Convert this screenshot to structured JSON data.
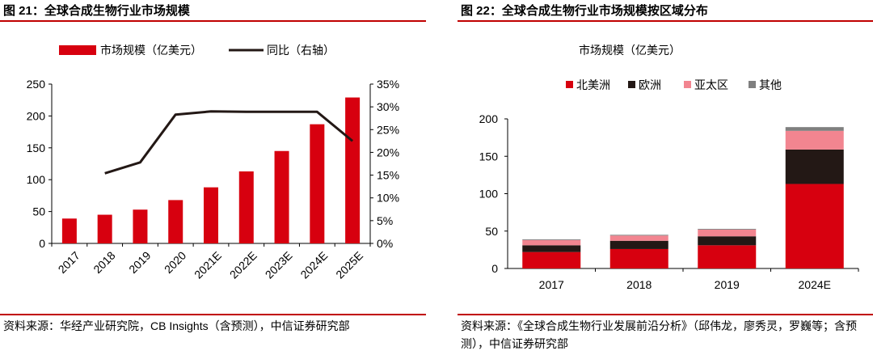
{
  "left_panel": {
    "title": "图 21：全球合成生物行业市场规模",
    "source": "资料来源：华经产业研究院，CB Insights（含预测），中信证券研究部"
  },
  "right_panel": {
    "title": "图 22：全球合成生物行业市场规模按区域分布",
    "source": "资料来源：《全球合成生物行业发展前沿分析》（邱伟龙，廖秀灵，罗巍等；含预测），中信证券研究部"
  },
  "chart_data": [
    {
      "type": "bar",
      "categories": [
        "2017",
        "2018",
        "2019",
        "2020",
        "2021E",
        "2022E",
        "2023E",
        "2024E",
        "2025E"
      ],
      "series": [
        {
          "name": "市场规模（亿美元）",
          "type": "bar",
          "axis": "left",
          "color": "#d7000f",
          "values": [
            39,
            45,
            53,
            68,
            88,
            113,
            145,
            187,
            229
          ]
        },
        {
          "name": "同比（右轴）",
          "type": "line",
          "axis": "right",
          "color": "#231815",
          "values": [
            null,
            15.4,
            17.8,
            28.3,
            29.0,
            28.9,
            28.9,
            28.9,
            22.5
          ]
        }
      ],
      "ylim": [
        0,
        250
      ],
      "yticks": [
        "0",
        "50",
        "100",
        "150",
        "200",
        "250"
      ],
      "y2lim": [
        0,
        35
      ],
      "y2ticks": [
        "0%",
        "5%",
        "10%",
        "15%",
        "20%",
        "25%",
        "30%",
        "35%"
      ],
      "legend_position": "top"
    },
    {
      "type": "bar",
      "stacked": true,
      "title": "市场规模（亿美元）",
      "categories": [
        "2017",
        "2018",
        "2019",
        "2024E"
      ],
      "series": [
        {
          "name": "北美洲",
          "color": "#d7000f",
          "values": [
            22,
            26,
            31,
            113
          ]
        },
        {
          "name": "欧洲",
          "color": "#231815",
          "values": [
            9,
            11,
            12,
            46
          ]
        },
        {
          "name": "亚太区",
          "color": "#f28590",
          "values": [
            7,
            7,
            9,
            25
          ]
        },
        {
          "name": "其他",
          "color": "#7f7f7f",
          "values": [
            1,
            1,
            1,
            5
          ]
        }
      ],
      "ylim": [
        0,
        200
      ],
      "yticks": [
        "0",
        "50",
        "100",
        "150",
        "200"
      ],
      "legend_position": "top"
    }
  ]
}
